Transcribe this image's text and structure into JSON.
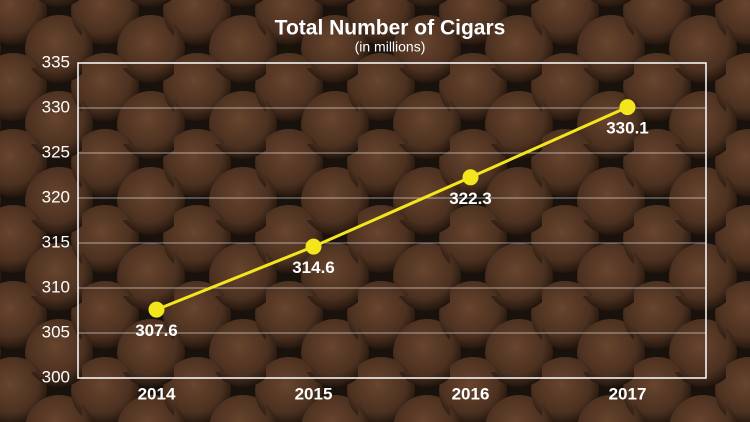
{
  "chart_data": {
    "type": "line",
    "title": "Total Number of Cigars",
    "subtitle": "(in millions)",
    "categories": [
      "2014",
      "2015",
      "2016",
      "2017"
    ],
    "values": [
      307.6,
      314.6,
      322.3,
      330.1
    ],
    "color": "#f4e61c",
    "ylim": [
      300,
      335
    ],
    "yticks": [
      300,
      305,
      310,
      315,
      320,
      325,
      330,
      335
    ],
    "grid": true
  }
}
